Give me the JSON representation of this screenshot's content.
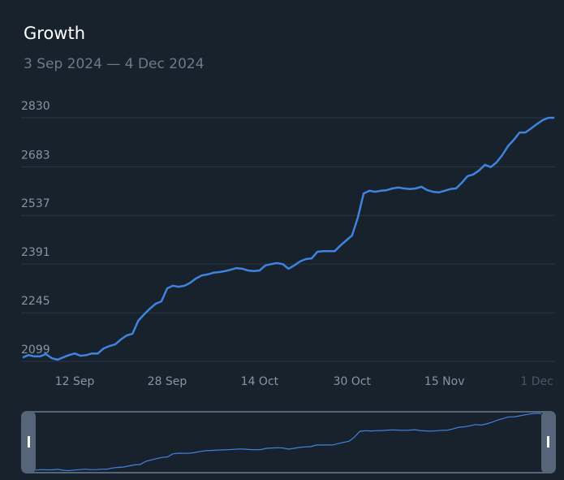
{
  "chart_data": {
    "type": "line",
    "title": "Growth",
    "subtitle": "3 Sep 2024 — 4 Dec 2024",
    "categories": [
      null,
      null,
      null,
      null,
      null,
      null,
      null,
      null,
      null,
      "12 Sep",
      null,
      null,
      null,
      null,
      null,
      null,
      null,
      null,
      null,
      null,
      null,
      null,
      null,
      null,
      null,
      "28 Sep",
      null,
      null,
      null,
      null,
      null,
      null,
      null,
      null,
      null,
      null,
      null,
      null,
      null,
      null,
      null,
      "14 Oct",
      null,
      null,
      null,
      null,
      null,
      null,
      null,
      null,
      null,
      null,
      null,
      null,
      null,
      null,
      null,
      "30 Oct",
      null,
      null,
      null,
      null,
      null,
      null,
      null,
      null,
      null,
      null,
      null,
      null,
      null,
      null,
      null,
      "15 Nov",
      null,
      null,
      null,
      null,
      null,
      null,
      null,
      null,
      null,
      null,
      null,
      null,
      null,
      null,
      null,
      "1 Dec",
      null,
      null,
      null
    ],
    "series": [
      {
        "name": "Growth",
        "color": "#3f83e0",
        "values": [
          2111,
          2118,
          2114,
          2114,
          2121,
          2109,
          2104,
          2111,
          2118,
          2123,
          2116,
          2118,
          2123,
          2123,
          2138,
          2145,
          2150,
          2165,
          2177,
          2182,
          2221,
          2240,
          2257,
          2272,
          2279,
          2318,
          2326,
          2323,
          2326,
          2335,
          2348,
          2357,
          2360,
          2365,
          2367,
          2370,
          2374,
          2379,
          2377,
          2372,
          2370,
          2372,
          2387,
          2391,
          2394,
          2391,
          2377,
          2387,
          2399,
          2406,
          2408,
          2428,
          2430,
          2430,
          2430,
          2447,
          2462,
          2477,
          2530,
          2603,
          2611,
          2608,
          2611,
          2613,
          2618,
          2621,
          2618,
          2616,
          2618,
          2623,
          2613,
          2608,
          2606,
          2611,
          2616,
          2618,
          2635,
          2655,
          2660,
          2672,
          2689,
          2682,
          2696,
          2718,
          2745,
          2764,
          2786,
          2786,
          2798,
          2811,
          2823,
          2830,
          2830
        ]
      }
    ],
    "ylim": [
      2099,
      2830
    ],
    "yticks": [
      2099,
      2245,
      2391,
      2537,
      2683,
      2830
    ],
    "grid": true
  }
}
